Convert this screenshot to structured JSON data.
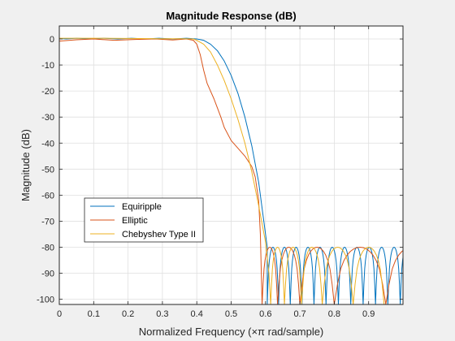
{
  "chart_data": {
    "type": "line",
    "title": "Magnitude Response (dB)",
    "xlabel": "Normalized Frequency (×π rad/sample)",
    "ylabel": "Magnitude (dB)",
    "xlim": [
      0,
      1
    ],
    "ylim": [
      -102,
      5
    ],
    "xticks": [
      0,
      0.1,
      0.2,
      0.3,
      0.4,
      0.5,
      0.6,
      0.7,
      0.8,
      0.9
    ],
    "xtick_labels": [
      "0",
      "0.1",
      "0.2",
      "0.3",
      "0.4",
      "0.5",
      "0.6",
      "0.7",
      "0.8",
      "0.9"
    ],
    "yticks": [
      0,
      -10,
      -20,
      -30,
      -40,
      -50,
      -60,
      -70,
      -80,
      -90,
      -100
    ],
    "ytick_labels": [
      "0",
      "-10",
      "-20",
      "-30",
      "-40",
      "-50",
      "-60",
      "-70",
      "-80",
      "-90",
      "-100"
    ],
    "grid": true,
    "legend_position": "lower-left",
    "series": [
      {
        "name": "Equiripple",
        "color": "#0072bd",
        "passband": [
          [
            0,
            0.2
          ],
          [
            0.02,
            0
          ],
          [
            0.05,
            0.3
          ],
          [
            0.09,
            0
          ],
          [
            0.13,
            0.3
          ],
          [
            0.17,
            0
          ],
          [
            0.21,
            0.3
          ],
          [
            0.25,
            0
          ],
          [
            0.29,
            0.3
          ],
          [
            0.33,
            0
          ],
          [
            0.37,
            0.3
          ],
          [
            0.4,
            0
          ]
        ],
        "transition": [
          [
            0.4,
            0
          ],
          [
            0.42,
            -0.5
          ],
          [
            0.44,
            -2
          ],
          [
            0.46,
            -4.5
          ],
          [
            0.48,
            -8.5
          ],
          [
            0.5,
            -14
          ],
          [
            0.52,
            -21
          ],
          [
            0.54,
            -30
          ],
          [
            0.56,
            -41
          ],
          [
            0.58,
            -55
          ],
          [
            0.595,
            -70
          ],
          [
            0.605,
            -80
          ]
        ],
        "stopband": {
          "min": -80,
          "floor": -102,
          "nulls": [
            0.605,
            0.638,
            0.672,
            0.706,
            0.741,
            0.776,
            0.812,
            0.848,
            0.884,
            0.92,
            0.956,
            0.992
          ]
        }
      },
      {
        "name": "Elliptic",
        "color": "#d95319",
        "passband": [
          [
            0,
            -0.8
          ],
          [
            0.05,
            -0.3
          ],
          [
            0.1,
            0
          ],
          [
            0.16,
            -0.5
          ],
          [
            0.22,
            -0.2
          ],
          [
            0.28,
            0
          ],
          [
            0.33,
            -0.4
          ],
          [
            0.37,
            0
          ],
          [
            0.39,
            -0.5
          ]
        ],
        "transition": [
          [
            0.39,
            -0.5
          ],
          [
            0.4,
            -2
          ],
          [
            0.41,
            -6
          ],
          [
            0.42,
            -12
          ],
          [
            0.43,
            -17
          ],
          [
            0.44,
            -20
          ],
          [
            0.45,
            -23
          ],
          [
            0.46,
            -26.5
          ],
          [
            0.47,
            -30
          ],
          [
            0.48,
            -34
          ],
          [
            0.5,
            -39
          ],
          [
            0.52,
            -42
          ],
          [
            0.54,
            -45
          ],
          [
            0.56,
            -49
          ],
          [
            0.57,
            -53
          ],
          [
            0.58,
            -62
          ],
          [
            0.585,
            -75
          ],
          [
            0.59,
            -102
          ]
        ],
        "stopband": {
          "min": -80,
          "floor": -102,
          "nulls": [
            0.59,
            0.635,
            0.7,
            0.8,
            0.95
          ]
        }
      },
      {
        "name": "Chebyshev Type II",
        "color": "#edb120",
        "passband": [
          [
            0,
            0.3
          ],
          [
            0.1,
            0.3
          ],
          [
            0.2,
            0.2
          ],
          [
            0.3,
            0.1
          ],
          [
            0.36,
            0.1
          ],
          [
            0.39,
            0
          ]
        ],
        "transition": [
          [
            0.39,
            0
          ],
          [
            0.4,
            -0.5
          ],
          [
            0.42,
            -2
          ],
          [
            0.44,
            -5
          ],
          [
            0.46,
            -10
          ],
          [
            0.48,
            -16
          ],
          [
            0.5,
            -23
          ],
          [
            0.52,
            -31
          ],
          [
            0.54,
            -40
          ],
          [
            0.56,
            -51
          ],
          [
            0.58,
            -64
          ],
          [
            0.6,
            -78
          ],
          [
            0.61,
            -90
          ],
          [
            0.615,
            -102
          ]
        ],
        "stopband": {
          "min": -80,
          "floor": -102,
          "nulls": [
            0.615,
            0.655,
            0.705,
            0.765,
            0.855
          ]
        }
      }
    ]
  }
}
